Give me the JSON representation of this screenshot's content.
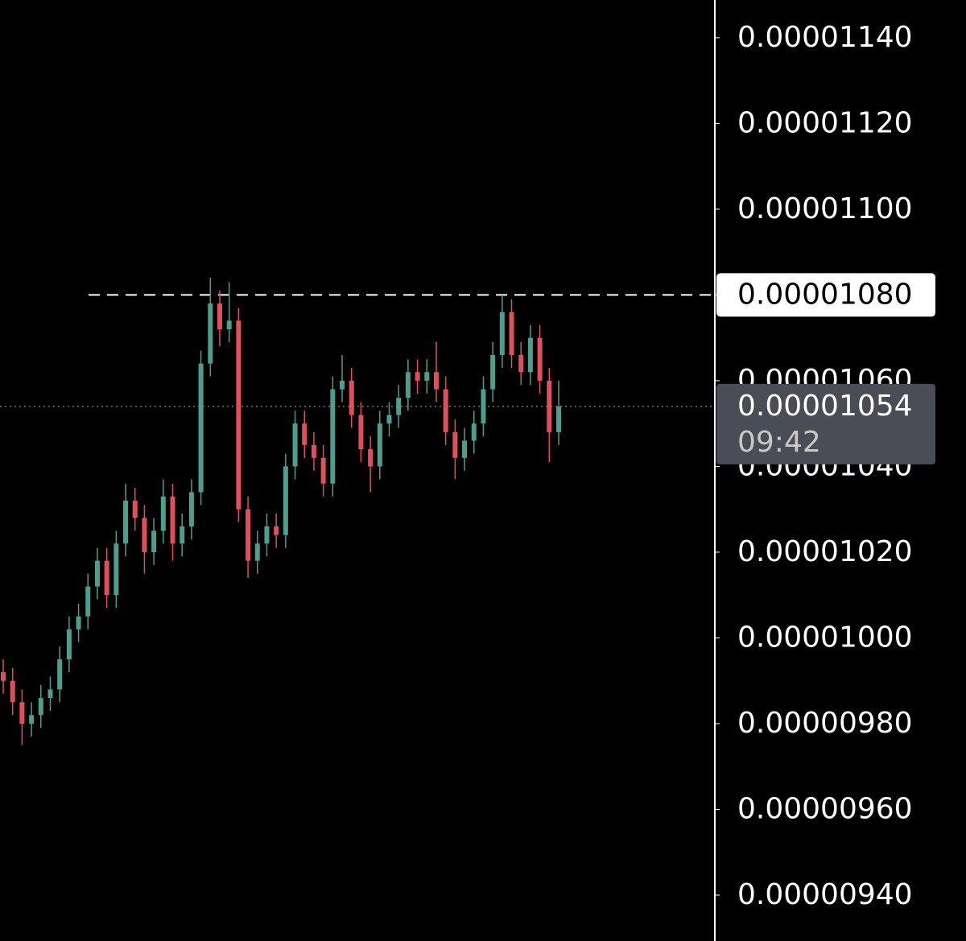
{
  "chart_data": {
    "type": "candlestick",
    "ylim": [
      9.293e-06,
      1.1488e-05
    ],
    "yticks": [
      {
        "value": 1.14e-05,
        "label": "0.00001140"
      },
      {
        "value": 1.12e-05,
        "label": "0.00001120"
      },
      {
        "value": 1.1e-05,
        "label": "0.00001100"
      },
      {
        "value": 1.08e-05,
        "label": "0.00001080"
      },
      {
        "value": 1.06e-05,
        "label": "0.00001060"
      },
      {
        "value": 1.04e-05,
        "label": "0.00001040"
      },
      {
        "value": 1.02e-05,
        "label": "0.00001020"
      },
      {
        "value": 1e-05,
        "label": "0.00001000"
      },
      {
        "value": 9.8e-06,
        "label": "0.00000980"
      },
      {
        "value": 9.6e-06,
        "label": "0.00000960"
      },
      {
        "value": 9.4e-06,
        "label": "0.00000940"
      }
    ],
    "resistance_level": 1.08e-05,
    "last_price": {
      "value": 1.054e-05,
      "label": "0.00001054"
    },
    "countdown": "09:42",
    "up_color": "#4f9e8c",
    "down_color": "#e0505c",
    "open": [
      9.92e-06,
      9.9e-06,
      9.85e-06,
      9.8e-06,
      9.82e-06,
      9.86e-06,
      9.88e-06,
      9.95e-06,
      1.002e-05,
      1.005e-05,
      1.012e-05,
      1.018e-05,
      1.01e-05,
      1.022e-05,
      1.032e-05,
      1.028e-05,
      1.02e-05,
      1.025e-05,
      1.033e-05,
      1.022e-05,
      1.026e-05,
      1.034e-05,
      1.064e-05,
      1.078e-05,
      1.072e-05,
      1.074e-05,
      1.03e-05,
      1.018e-05,
      1.022e-05,
      1.026e-05,
      1.024e-05,
      1.04e-05,
      1.05e-05,
      1.045e-05,
      1.042e-05,
      1.036e-05,
      1.058e-05,
      1.06e-05,
      1.052e-05,
      1.044e-05,
      1.04e-05,
      1.05e-05,
      1.052e-05,
      1.056e-05,
      1.062e-05,
      1.06e-05,
      1.062e-05,
      1.058e-05,
      1.048e-05,
      1.042e-05,
      1.046e-05,
      1.05e-05,
      1.058e-05,
      1.066e-05,
      1.076e-05,
      1.066e-05,
      1.062e-05,
      1.07e-05,
      1.06e-05,
      1.048e-05
    ],
    "high": [
      9.95e-06,
      9.93e-06,
      9.88e-06,
      9.85e-06,
      9.89e-06,
      9.91e-06,
      9.98e-06,
      1.005e-05,
      1.008e-05,
      1.015e-05,
      1.021e-05,
      1.021e-05,
      1.025e-05,
      1.036e-05,
      1.035e-05,
      1.031e-05,
      1.028e-05,
      1.037e-05,
      1.036e-05,
      1.029e-05,
      1.037e-05,
      1.067e-05,
      1.084e-05,
      1.081e-05,
      1.083e-05,
      1.077e-05,
      1.033e-05,
      1.025e-05,
      1.029e-05,
      1.029e-05,
      1.043e-05,
      1.053e-05,
      1.053e-05,
      1.048e-05,
      1.045e-05,
      1.061e-05,
      1.066e-05,
      1.063e-05,
      1.055e-05,
      1.047e-05,
      1.053e-05,
      1.055e-05,
      1.059e-05,
      1.065e-05,
      1.065e-05,
      1.065e-05,
      1.069e-05,
      1.061e-05,
      1.051e-05,
      1.049e-05,
      1.053e-05,
      1.061e-05,
      1.069e-05,
      1.08e-05,
      1.079e-05,
      1.069e-05,
      1.073e-05,
      1.073e-05,
      1.063e-05,
      1.06e-05
    ],
    "low": [
      9.87e-06,
      9.82e-06,
      9.75e-06,
      9.77e-06,
      9.79e-06,
      9.83e-06,
      9.85e-06,
      9.92e-06,
      9.99e-06,
      1.002e-05,
      1.009e-05,
      1.007e-05,
      1.007e-05,
      1.019e-05,
      1.025e-05,
      1.015e-05,
      1.017e-05,
      1.022e-05,
      1.018e-05,
      1.019e-05,
      1.023e-05,
      1.031e-05,
      1.061e-05,
      1.068e-05,
      1.069e-05,
      1.027e-05,
      1.014e-05,
      1.015e-05,
      1.019e-05,
      1.021e-05,
      1.021e-05,
      1.037e-05,
      1.042e-05,
      1.039e-05,
      1.033e-05,
      1.033e-05,
      1.055e-05,
      1.049e-05,
      1.041e-05,
      1.034e-05,
      1.037e-05,
      1.047e-05,
      1.049e-05,
      1.053e-05,
      1.057e-05,
      1.057e-05,
      1.055e-05,
      1.045e-05,
      1.037e-05,
      1.039e-05,
      1.043e-05,
      1.047e-05,
      1.055e-05,
      1.063e-05,
      1.063e-05,
      1.059e-05,
      1.059e-05,
      1.057e-05,
      1.041e-05,
      1.045e-05
    ],
    "close": [
      9.9e-06,
      9.85e-06,
      9.8e-06,
      9.82e-06,
      9.86e-06,
      9.88e-06,
      9.95e-06,
      1.002e-05,
      1.005e-05,
      1.012e-05,
      1.018e-05,
      1.01e-05,
      1.022e-05,
      1.032e-05,
      1.028e-05,
      1.02e-05,
      1.025e-05,
      1.033e-05,
      1.022e-05,
      1.026e-05,
      1.034e-05,
      1.064e-05,
      1.078e-05,
      1.072e-05,
      1.074e-05,
      1.03e-05,
      1.018e-05,
      1.022e-05,
      1.026e-05,
      1.024e-05,
      1.04e-05,
      1.05e-05,
      1.045e-05,
      1.042e-05,
      1.036e-05,
      1.058e-05,
      1.06e-05,
      1.052e-05,
      1.044e-05,
      1.04e-05,
      1.05e-05,
      1.052e-05,
      1.056e-05,
      1.062e-05,
      1.06e-05,
      1.062e-05,
      1.058e-05,
      1.048e-05,
      1.042e-05,
      1.046e-05,
      1.05e-05,
      1.058e-05,
      1.066e-05,
      1.076e-05,
      1.066e-05,
      1.062e-05,
      1.07e-05,
      1.06e-05,
      1.048e-05,
      1.054e-05
    ]
  }
}
